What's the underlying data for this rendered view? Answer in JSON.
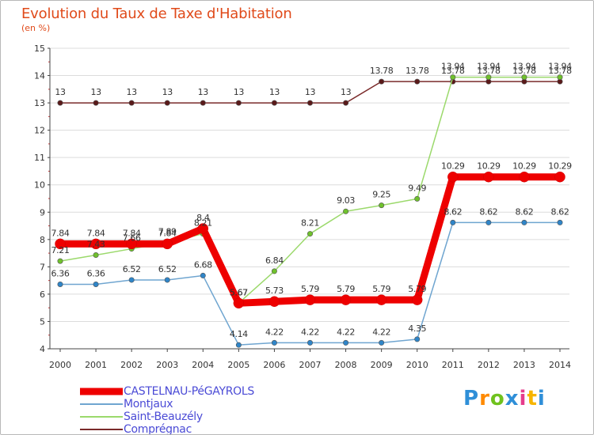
{
  "chart_data": {
    "type": "line",
    "title": "Evolution du Taux de Taxe d'Habitation",
    "subtitle": "(en %)",
    "x": [
      "2000",
      "2001",
      "2002",
      "2003",
      "2004",
      "2005",
      "2006",
      "2007",
      "2008",
      "2009",
      "2010",
      "2011",
      "2012",
      "2013",
      "2014"
    ],
    "ylim": [
      4,
      15
    ],
    "yticks": [
      "4",
      "5",
      "6",
      "7",
      "8",
      "9",
      "10",
      "11",
      "12",
      "13",
      "14",
      "15"
    ],
    "grid": "horizontal",
    "legend_position": "bottom-left",
    "series": [
      {
        "name": "Comprégnac",
        "color": "#7a2a2a",
        "dot": "#5a1a1a",
        "values": [
          13,
          13,
          13,
          13,
          13,
          13,
          13,
          13,
          13,
          13.78,
          13.78,
          13.78,
          13.78,
          13.78,
          13.78
        ],
        "labels": [
          "13",
          "13",
          "13",
          "13",
          "13",
          "13",
          "13",
          "13",
          "13",
          "13.78",
          "13.78",
          "13.78",
          "13.78",
          "13.78",
          "13.78"
        ]
      },
      {
        "name": "Saint-Beauzély",
        "color": "#9bd96b",
        "dot": "#6fc12c",
        "values": [
          7.21,
          7.43,
          7.66,
          7.89,
          8.21,
          5.67,
          6.84,
          8.21,
          9.03,
          9.25,
          9.49,
          13.94,
          13.94,
          13.94,
          13.94
        ],
        "labels": [
          "7.21",
          "7.43",
          "7.66",
          "7.89",
          "8.21",
          "5.67",
          "6.84",
          "8.21",
          "9.03",
          "9.25",
          "9.49",
          "13.94",
          "13.94",
          "13.94",
          "13.94"
        ]
      },
      {
        "name": "Montjaux",
        "color": "#6fa5d0",
        "dot": "#2f85c8",
        "values": [
          6.36,
          6.36,
          6.52,
          6.52,
          6.68,
          4.14,
          4.22,
          4.22,
          4.22,
          4.22,
          4.35,
          8.62,
          8.62,
          8.62,
          8.62
        ],
        "labels": [
          "6.36",
          "6.36",
          "6.52",
          "6.52",
          "6.68",
          "4.14",
          "4.22",
          "4.22",
          "4.22",
          "4.22",
          "4.35",
          "8.62",
          "8.62",
          "8.62",
          "8.62"
        ]
      },
      {
        "name": "CASTELNAU-PéGAYROLS",
        "color": "#ee0000",
        "dot": "#ee0000",
        "values": [
          7.84,
          7.84,
          7.84,
          7.84,
          8.4,
          5.67,
          5.73,
          5.79,
          5.79,
          5.79,
          5.79,
          10.29,
          10.29,
          10.29,
          10.29
        ],
        "labels": [
          "7.84",
          "7.84",
          "7.84",
          "7.84",
          "8.4",
          "5.67",
          "5.73",
          "5.79",
          "5.79",
          "5.79",
          "5.79",
          "10.29",
          "10.29",
          "10.29",
          "10.29"
        ]
      }
    ]
  },
  "legend": {
    "items": [
      {
        "name": "CASTELNAU-PéGAYROLS",
        "color": "#ee0000"
      },
      {
        "name": "Montjaux",
        "color": "#6fa5d0"
      },
      {
        "name": "Saint-Beauzély",
        "color": "#9bd96b"
      },
      {
        "name": "Comprégnac",
        "color": "#7a2a2a"
      }
    ]
  },
  "brand": {
    "chars": [
      "P",
      "r",
      "o",
      "x",
      "i",
      "t",
      "i"
    ]
  }
}
